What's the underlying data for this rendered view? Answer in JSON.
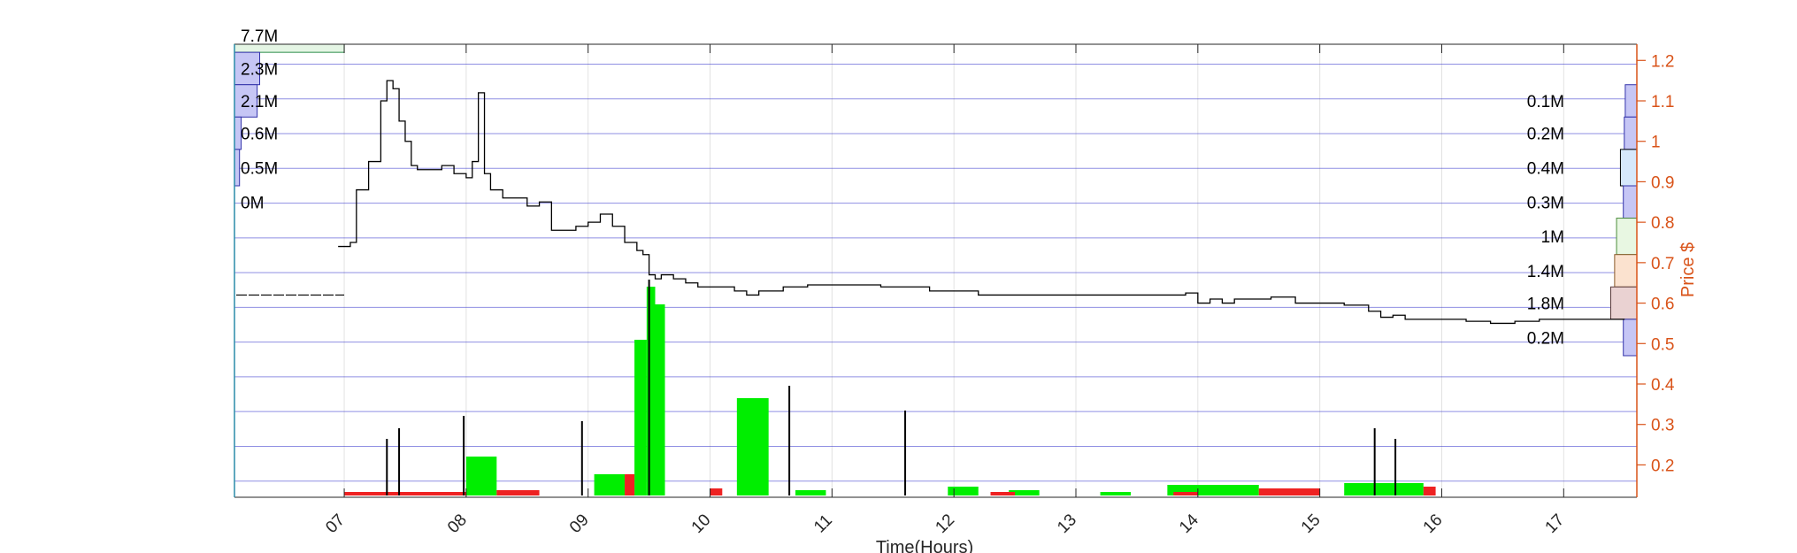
{
  "chart_data": {
    "type": "line",
    "xlabel": "Time(Hours)",
    "ylabel": "Price $",
    "xlim": [
      6.1,
      17.6
    ],
    "ylim": [
      0.12,
      1.24
    ],
    "x_ticks": [
      "07",
      "08",
      "09",
      "10",
      "11",
      "12",
      "13",
      "14",
      "15",
      "16",
      "17"
    ],
    "y_ticks": [
      "0.2",
      "0.3",
      "0.4",
      "0.5",
      "0.6",
      "0.7",
      "0.8",
      "0.9",
      "1",
      "1.1",
      "1.2"
    ],
    "grid": true,
    "colors": {
      "price": "#000000",
      "right_axis": "#D95319",
      "profile_band": "#3333cc",
      "buy_volume": "#00ee00",
      "sell_volume": "#ee2222",
      "left_axis": "#2a8ca8"
    },
    "price_series": {
      "x": [
        6.95,
        7.05,
        7.1,
        7.2,
        7.3,
        7.35,
        7.4,
        7.45,
        7.5,
        7.55,
        7.6,
        7.7,
        7.8,
        7.9,
        8.0,
        8.05,
        8.1,
        8.15,
        8.2,
        8.3,
        8.5,
        8.6,
        8.7,
        8.9,
        9.0,
        9.1,
        9.2,
        9.3,
        9.4,
        9.45,
        9.5,
        9.55,
        9.6,
        9.7,
        9.8,
        9.9,
        10.0,
        10.2,
        10.3,
        10.4,
        10.6,
        10.8,
        11.0,
        11.2,
        11.4,
        11.6,
        11.8,
        12.0,
        12.2,
        12.4,
        12.6,
        12.8,
        13.0,
        13.2,
        13.4,
        13.6,
        13.8,
        13.9,
        14.0,
        14.1,
        14.2,
        14.3,
        14.4,
        14.6,
        14.8,
        15.0,
        15.2,
        15.4,
        15.5,
        15.6,
        15.7,
        15.8,
        16.0,
        16.2,
        16.4,
        16.6,
        16.8,
        17.0,
        17.2,
        17.4,
        17.5
      ],
      "y": [
        0.74,
        0.75,
        0.88,
        0.95,
        1.1,
        1.15,
        1.13,
        1.05,
        1.0,
        0.94,
        0.93,
        0.93,
        0.94,
        0.92,
        0.91,
        0.95,
        1.12,
        0.92,
        0.88,
        0.86,
        0.84,
        0.85,
        0.78,
        0.79,
        0.8,
        0.82,
        0.79,
        0.75,
        0.73,
        0.72,
        0.67,
        0.66,
        0.67,
        0.66,
        0.65,
        0.64,
        0.64,
        0.63,
        0.62,
        0.63,
        0.64,
        0.645,
        0.645,
        0.645,
        0.64,
        0.64,
        0.63,
        0.63,
        0.62,
        0.62,
        0.62,
        0.62,
        0.62,
        0.62,
        0.62,
        0.62,
        0.62,
        0.625,
        0.6,
        0.61,
        0.6,
        0.61,
        0.61,
        0.615,
        0.6,
        0.6,
        0.595,
        0.58,
        0.565,
        0.57,
        0.56,
        0.56,
        0.56,
        0.555,
        0.55,
        0.555,
        0.56,
        0.56,
        0.56,
        0.56,
        0.56
      ]
    },
    "volume_series": {
      "buy": [
        {
          "x0": 8.0,
          "x1": 8.25,
          "vol": 0.22
        },
        {
          "x0": 9.05,
          "x1": 9.3,
          "vol": 0.12
        },
        {
          "x0": 9.38,
          "x1": 9.48,
          "vol": 0.88
        },
        {
          "x0": 9.48,
          "x1": 9.55,
          "vol": 1.18
        },
        {
          "x0": 9.55,
          "x1": 9.63,
          "vol": 1.08
        },
        {
          "x0": 10.22,
          "x1": 10.48,
          "vol": 0.55
        },
        {
          "x0": 10.7,
          "x1": 10.95,
          "vol": 0.03
        },
        {
          "x0": 11.95,
          "x1": 12.2,
          "vol": 0.05
        },
        {
          "x0": 12.45,
          "x1": 12.7,
          "vol": 0.03
        },
        {
          "x0": 13.2,
          "x1": 13.45,
          "vol": 0.02
        },
        {
          "x0": 13.75,
          "x1": 14.5,
          "vol": 0.06
        },
        {
          "x0": 15.2,
          "x1": 15.85,
          "vol": 0.07
        }
      ],
      "sell": [
        {
          "x0": 7.0,
          "x1": 8.0,
          "vol": 0.02
        },
        {
          "x0": 8.25,
          "x1": 8.6,
          "vol": 0.03
        },
        {
          "x0": 9.3,
          "x1": 9.38,
          "vol": 0.12
        },
        {
          "x0": 10.0,
          "x1": 10.1,
          "vol": 0.04
        },
        {
          "x0": 12.3,
          "x1": 12.5,
          "vol": 0.02
        },
        {
          "x0": 13.8,
          "x1": 14.0,
          "vol": 0.02
        },
        {
          "x0": 14.5,
          "x1": 15.0,
          "vol": 0.04
        },
        {
          "x0": 15.85,
          "x1": 15.95,
          "vol": 0.05
        }
      ],
      "spikes": [
        {
          "x": 7.35,
          "vol": 0.32
        },
        {
          "x": 7.45,
          "vol": 0.38
        },
        {
          "x": 7.98,
          "vol": 0.45
        },
        {
          "x": 8.95,
          "vol": 0.42
        },
        {
          "x": 9.5,
          "vol": 1.22
        },
        {
          "x": 10.65,
          "vol": 0.62
        },
        {
          "x": 11.6,
          "vol": 0.48
        },
        {
          "x": 15.45,
          "vol": 0.38
        },
        {
          "x": 15.62,
          "vol": 0.32
        }
      ]
    },
    "volume_profile_left": [
      {
        "label": "7.7M",
        "price_lo": 1.22,
        "price_hi": 1.24,
        "width": 1.0,
        "color": "#e4f5e4",
        "edge": "#2a8c4a"
      },
      {
        "label": "2.3M",
        "price_lo": 1.14,
        "price_hi": 1.22,
        "width": 0.3,
        "color": "#c6c6f5",
        "edge": "#3333aa"
      },
      {
        "label": "2.1M",
        "price_lo": 1.06,
        "price_hi": 1.14,
        "width": 0.27,
        "color": "#c6c6f5",
        "edge": "#3333aa"
      },
      {
        "label": "0.6M",
        "price_lo": 0.98,
        "price_hi": 1.06,
        "width": 0.08,
        "color": "#c6c6f5",
        "edge": "#3333aa"
      },
      {
        "label": "0.5M",
        "price_lo": 0.89,
        "price_hi": 0.98,
        "width": 0.06,
        "color": "#c6c6f5",
        "edge": "#3333aa"
      },
      {
        "label": "0M",
        "price_lo": 0.81,
        "price_hi": 0.89,
        "width": 0.0,
        "color": "#c6c6f5",
        "edge": "#3333aa"
      }
    ],
    "volume_profile_right": [
      {
        "label": "0.1M",
        "price_lo": 1.06,
        "price_hi": 1.14,
        "width": 0.12,
        "color": "#c6c6f5",
        "edge": "#3333aa"
      },
      {
        "label": "0.2M",
        "price_lo": 0.98,
        "price_hi": 1.06,
        "width": 0.13,
        "color": "#c6c6f5",
        "edge": "#3333aa"
      },
      {
        "label": "0.4M",
        "price_lo": 0.89,
        "price_hi": 0.98,
        "width": 0.17,
        "color": "#d6e8fb",
        "edge": "#000000"
      },
      {
        "label": "0.3M",
        "price_lo": 0.81,
        "price_hi": 0.89,
        "width": 0.14,
        "color": "#c6c6f5",
        "edge": "#3333aa"
      },
      {
        "label": "1M",
        "price_lo": 0.72,
        "price_hi": 0.81,
        "width": 0.21,
        "color": "#e8f7e2",
        "edge": "#4a8c3a"
      },
      {
        "label": "1.4M",
        "price_lo": 0.64,
        "price_hi": 0.72,
        "width": 0.23,
        "color": "#fbe2cf",
        "edge": "#8c5a2a"
      },
      {
        "label": "1.8M",
        "price_lo": 0.56,
        "price_hi": 0.64,
        "width": 0.27,
        "color": "#ead2d2",
        "edge": "#5a3a3a"
      },
      {
        "label": "0.2M",
        "price_lo": 0.47,
        "price_hi": 0.56,
        "width": 0.14,
        "color": "#c6c6f5",
        "edge": "#3333aa"
      }
    ],
    "left_reference_price": 0.62
  }
}
